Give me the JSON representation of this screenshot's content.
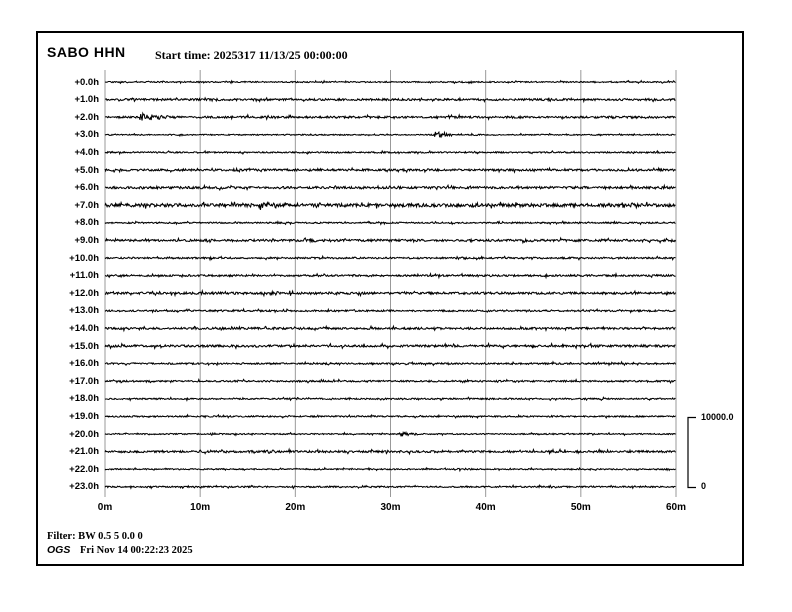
{
  "header": {
    "station": "SABO HHN",
    "start_time_label": "Start time: 2025317 11/13/25 00:00:00"
  },
  "scalebar": {
    "max": "10000.0",
    "min": "0"
  },
  "footer": {
    "filter": "Filter: BW 0.5 5 0.0 0",
    "program": "OGS",
    "generated": "Fri Nov 14 00:22:23 2025"
  },
  "chart_data": {
    "type": "line",
    "subtype": "helicorder-seismogram",
    "title": "SABO HHN",
    "start_time": "2025317 11/13/25 00:00:00",
    "x_unit": "minutes per line",
    "x_range": [
      0,
      60
    ],
    "x_ticks": [
      "0m",
      "10m",
      "20m",
      "30m",
      "40m",
      "50m",
      "60m"
    ],
    "grid": true,
    "grid_color": "#999999",
    "trace_color": "#000000",
    "amplitude_scale": {
      "max": 10000.0,
      "min": 0
    },
    "rows": [
      {
        "label": "+0.0h",
        "noise": 0.6,
        "events": []
      },
      {
        "label": "+1.0h",
        "noise": 1.0,
        "events": []
      },
      {
        "label": "+2.0h",
        "noise": 1.0,
        "events": [
          {
            "minute": 3.7,
            "amplitude": 4.5,
            "duration": 1.6
          }
        ]
      },
      {
        "label": "+3.0h",
        "noise": 0.55,
        "events": [
          {
            "minute": 34.7,
            "amplitude": 3.8,
            "duration": 1.4
          }
        ]
      },
      {
        "label": "+4.0h",
        "noise": 0.7,
        "events": []
      },
      {
        "label": "+5.0h",
        "noise": 1.0,
        "events": [
          {
            "minute": 33.4,
            "amplitude": 1.4,
            "duration": 0.5
          }
        ]
      },
      {
        "label": "+6.0h",
        "noise": 1.1,
        "events": []
      },
      {
        "label": "+7.0h",
        "noise": 1.6,
        "events": [
          {
            "minute": 14.2,
            "amplitude": 2.0,
            "duration": 1.0
          },
          {
            "minute": 16.1,
            "amplitude": 4.2,
            "duration": 1.8
          },
          {
            "minute": 38.0,
            "amplitude": 1.4,
            "duration": 0.8
          }
        ]
      },
      {
        "label": "+8.0h",
        "noise": 0.7,
        "events": []
      },
      {
        "label": "+9.0h",
        "noise": 1.1,
        "events": [
          {
            "minute": 20.8,
            "amplitude": 2.6,
            "duration": 1.0
          }
        ]
      },
      {
        "label": "+10.0h",
        "noise": 0.8,
        "events": [
          {
            "minute": 36.8,
            "amplitude": 1.6,
            "duration": 0.8
          }
        ]
      },
      {
        "label": "+11.0h",
        "noise": 0.9,
        "events": []
      },
      {
        "label": "+12.0h",
        "noise": 1.1,
        "events": [
          {
            "minute": 17.5,
            "amplitude": 2.2,
            "duration": 1.0
          }
        ]
      },
      {
        "label": "+13.0h",
        "noise": 0.8,
        "events": []
      },
      {
        "label": "+14.0h",
        "noise": 1.0,
        "events": []
      },
      {
        "label": "+15.0h",
        "noise": 1.1,
        "events": []
      },
      {
        "label": "+16.0h",
        "noise": 0.8,
        "events": []
      },
      {
        "label": "+17.0h",
        "noise": 0.8,
        "events": []
      },
      {
        "label": "+18.0h",
        "noise": 0.7,
        "events": [
          {
            "minute": 19.4,
            "amplitude": 1.8,
            "duration": 0.7
          }
        ]
      },
      {
        "label": "+19.0h",
        "noise": 0.7,
        "events": []
      },
      {
        "label": "+20.0h",
        "noise": 0.6,
        "events": [
          {
            "minute": 11.2,
            "amplitude": 1.2,
            "duration": 0.6
          },
          {
            "minute": 31.0,
            "amplitude": 3.0,
            "duration": 1.0
          }
        ]
      },
      {
        "label": "+21.0h",
        "noise": 1.0,
        "events": [
          {
            "minute": 17.0,
            "amplitude": 1.6,
            "duration": 0.8
          }
        ]
      },
      {
        "label": "+22.0h",
        "noise": 0.6,
        "events": [
          {
            "minute": 22.6,
            "amplitude": 1.0,
            "duration": 0.5
          },
          {
            "minute": 37.0,
            "amplitude": 1.4,
            "duration": 0.7
          }
        ]
      },
      {
        "label": "+23.0h",
        "noise": 0.7,
        "events": [
          {
            "minute": 19.5,
            "amplitude": 0.9,
            "duration": 0.4
          }
        ]
      }
    ]
  }
}
